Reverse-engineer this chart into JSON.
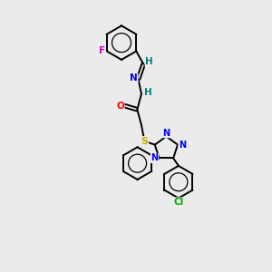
{
  "bg_color": "#ebebeb",
  "atom_colors": {
    "C": "#000000",
    "N": "#0000ff",
    "O": "#ff0000",
    "S": "#ccaa00",
    "F": "#cc00cc",
    "Cl": "#00aa00",
    "H": "#008080"
  },
  "figsize": [
    3.0,
    3.0
  ],
  "dpi": 100
}
